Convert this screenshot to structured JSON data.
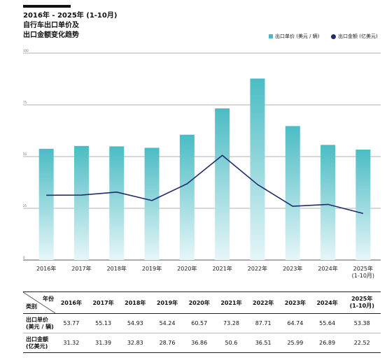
{
  "title": {
    "line1": "2016年 - 2025年 (1-10月)",
    "line2": "自行车出口单价及",
    "line3": "出口金额变化趋势"
  },
  "legend": {
    "unit_price": "出口单价 (美元 / 辆)",
    "amount": "出口金额 (亿美元)"
  },
  "colors": {
    "bar_top": "#4bbcc4",
    "bar_bottom": "#e6f6f8",
    "line": "#1f2d6e",
    "text": "#111111"
  },
  "chart_data": {
    "type": "bar",
    "categories": [
      "2016年",
      "2017年",
      "2018年",
      "2019年",
      "2020年",
      "2021年",
      "2022年",
      "2023年",
      "2024年",
      "2025年"
    ],
    "category_sublabels": [
      "",
      "",
      "",
      "",
      "",
      "",
      "",
      "",
      "",
      "(1-10月)"
    ],
    "y_ticks": [
      "100",
      "75",
      "50",
      "25",
      "0"
    ],
    "ylim": [
      0,
      100
    ],
    "series": [
      {
        "name": "出口单价 (美元 / 辆)",
        "type": "bar",
        "values": [
          53.77,
          55.13,
          54.93,
          54.24,
          60.57,
          73.28,
          87.71,
          64.74,
          55.64,
          53.38
        ]
      },
      {
        "name": "出口金额 (亿美元)",
        "type": "line",
        "values": [
          31.32,
          31.39,
          32.83,
          28.76,
          36.86,
          50.6,
          36.51,
          25.99,
          26.89,
          22.52
        ]
      }
    ],
    "grid": true,
    "legend_position": "top-right"
  },
  "table": {
    "corner_top": "年份",
    "corner_bottom": "类别",
    "years": [
      "2016年",
      "2017年",
      "2018年",
      "2019年",
      "2020年",
      "2021年",
      "2022年",
      "2023年",
      "2024年",
      "2025年"
    ],
    "last_year_line1": "2025年",
    "last_year_line2": "(1-10月)",
    "row1_label_1": "出口单价",
    "row1_label_2": "(美元 / 辆)",
    "row2_label_1": "出口金额",
    "row2_label_2": "(亿美元)",
    "row1": [
      "53.77",
      "55.13",
      "54.93",
      "54.24",
      "60.57",
      "73.28",
      "87.71",
      "64.74",
      "55.64",
      "53.38"
    ],
    "row2": [
      "31.32",
      "31.39",
      "32.83",
      "28.76",
      "36.86",
      "50.6",
      "36.51",
      "25.99",
      "26.89",
      "22.52"
    ]
  }
}
